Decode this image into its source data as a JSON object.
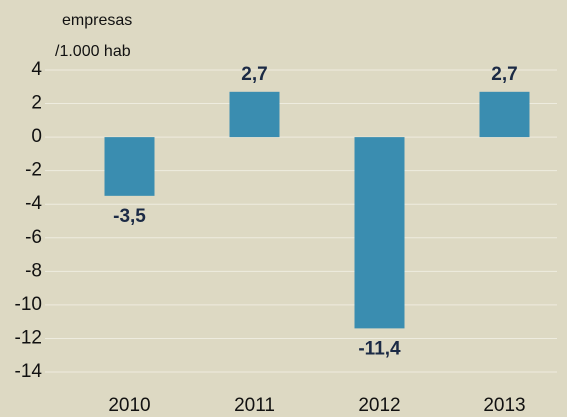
{
  "chart_data": {
    "type": "bar",
    "ylabel": [
      "empresas",
      "/1.000 hab"
    ],
    "categories": [
      "2010",
      "2011",
      "2012",
      "2013"
    ],
    "values": [
      -3.5,
      2.7,
      -11.4,
      2.7
    ],
    "value_labels": [
      "-3,5",
      "2,7",
      "-11,4",
      "2,7"
    ],
    "color": "#3a8db0",
    "ylim": [
      -14,
      4
    ],
    "yticks": [
      4,
      2,
      0,
      -2,
      -4,
      -6,
      -8,
      -10,
      -12,
      -14
    ],
    "grid": true
  }
}
